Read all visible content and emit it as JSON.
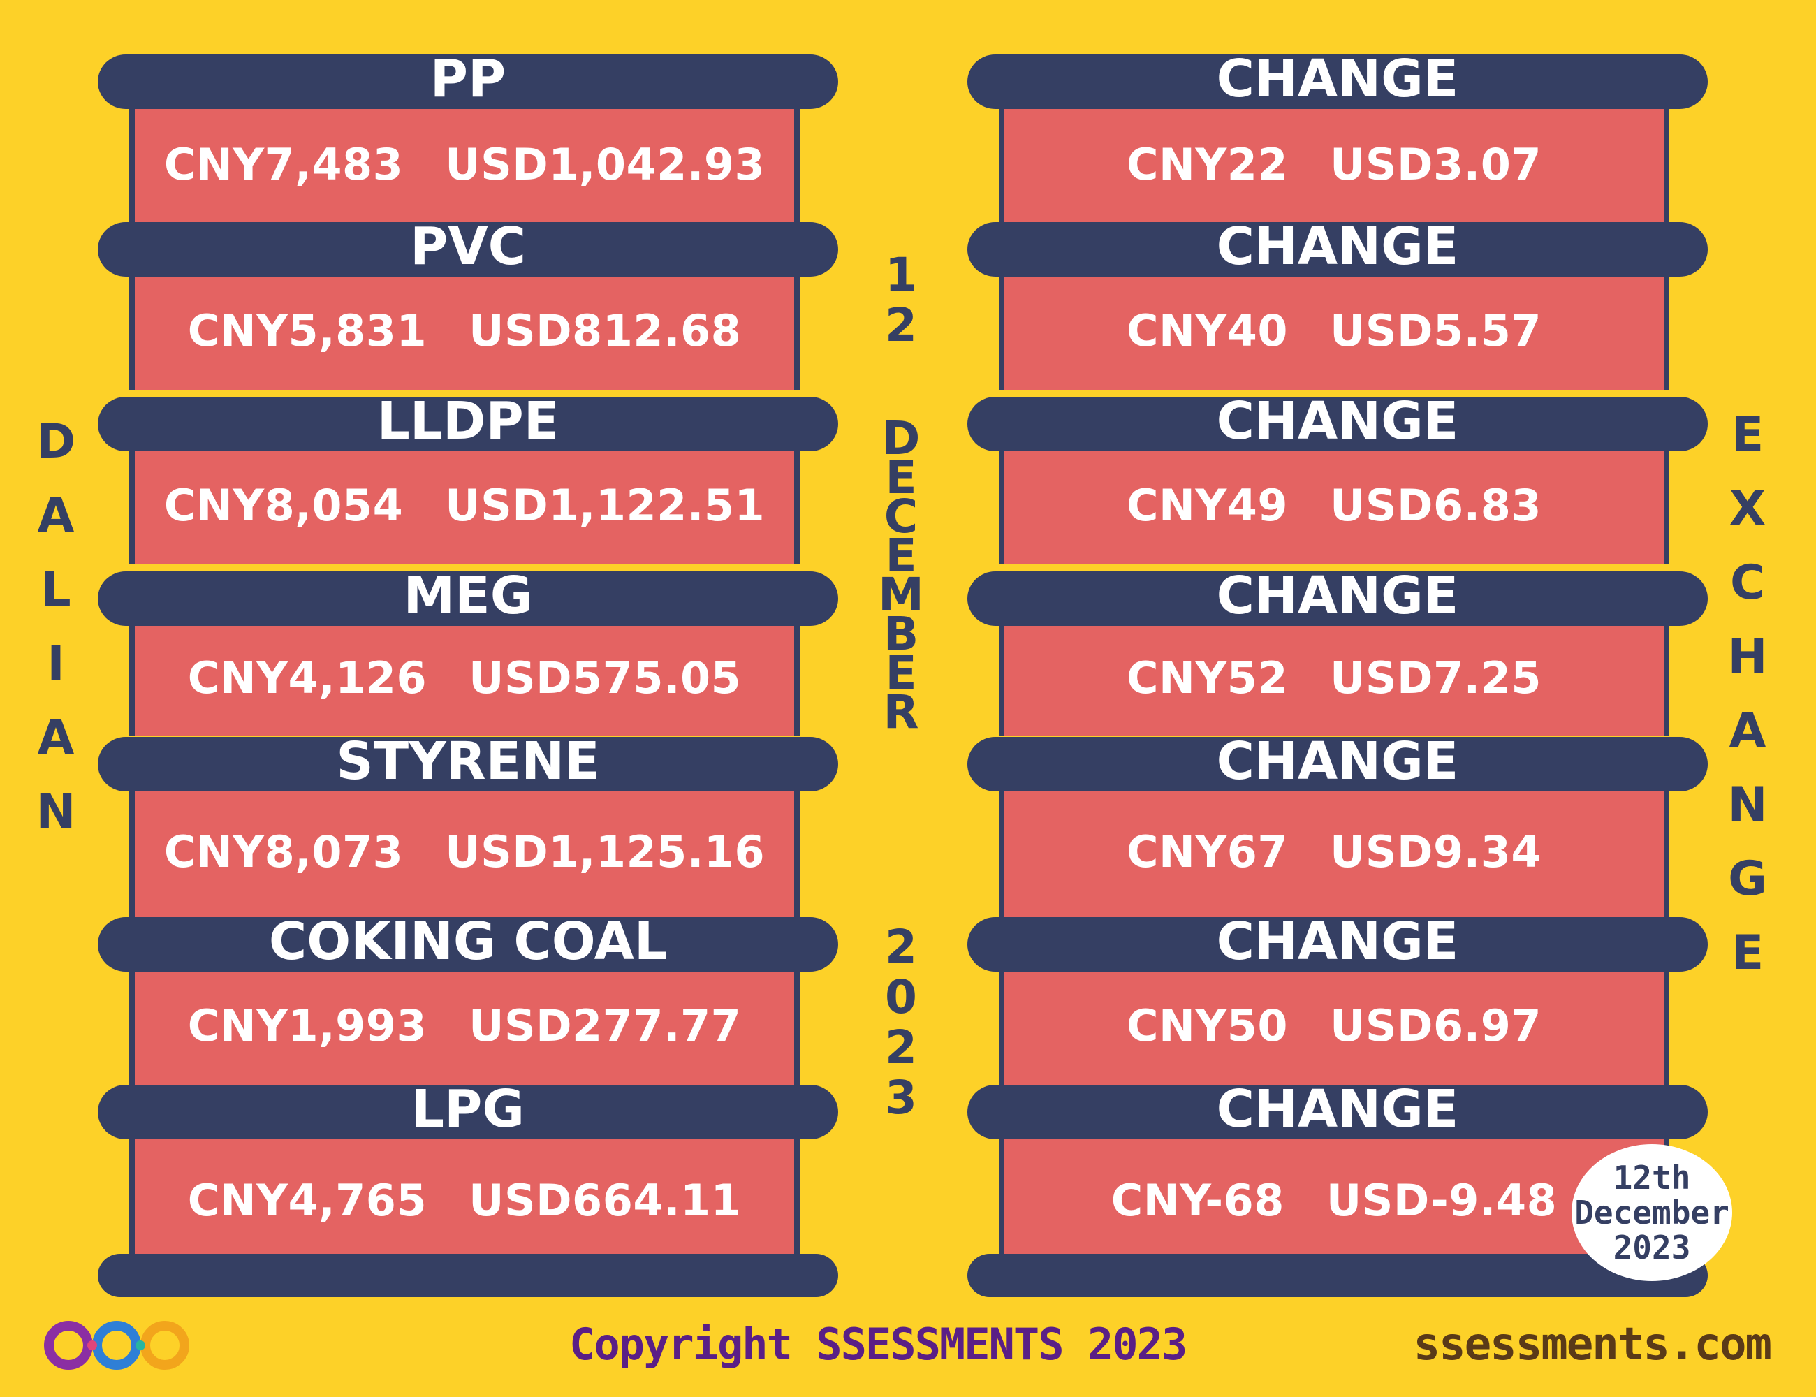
{
  "prices": [
    {
      "product": "PP",
      "cny": "CNY7,483",
      "usd": "USD1,042.93"
    },
    {
      "product": "PVC",
      "cny": "CNY5,831",
      "usd": "USD812.68"
    },
    {
      "product": "LLDPE",
      "cny": "CNY8,054",
      "usd": "USD1,122.51"
    },
    {
      "product": "MEG",
      "cny": "CNY4,126",
      "usd": "USD575.05"
    },
    {
      "product": "STYRENE",
      "cny": "CNY8,073",
      "usd": "USD1,125.16"
    },
    {
      "product": "COKING COAL",
      "cny": "CNY1,993",
      "usd": "USD277.77"
    },
    {
      "product": "LPG",
      "cny": "CNY4,765",
      "usd": "USD664.11"
    }
  ],
  "changes": [
    {
      "label": "CHANGE",
      "cny": "CNY22",
      "usd": "USD3.07"
    },
    {
      "label": "CHANGE",
      "cny": "CNY40",
      "usd": "USD5.57"
    },
    {
      "label": "CHANGE",
      "cny": "CNY49",
      "usd": "USD6.83"
    },
    {
      "label": "CHANGE",
      "cny": "CNY52",
      "usd": "USD7.25"
    },
    {
      "label": "CHANGE",
      "cny": "CNY67",
      "usd": "USD9.34"
    },
    {
      "label": "CHANGE",
      "cny": "CNY50",
      "usd": "USD6.97"
    },
    {
      "label": "CHANGE",
      "cny": "CNY-68",
      "usd": "USD-9.48"
    }
  ],
  "side_left": "DALIAN",
  "side_right": "EXCHANGE",
  "center_date": {
    "day": "12",
    "month": "DECEMBER",
    "year": "2023"
  },
  "badge": {
    "line1": "12th",
    "line2": "December",
    "line3": "2023"
  },
  "footer": {
    "copyright": "Copyright SSESSMENTS 2023",
    "site": "ssessments.com"
  },
  "colors": {
    "background": "#fdd128",
    "bar": "#353f63",
    "panel": "#e46362",
    "copyright": "#5a1f86",
    "site": "#5a3a18"
  },
  "logo_icon": "infinity-logo-icon"
}
